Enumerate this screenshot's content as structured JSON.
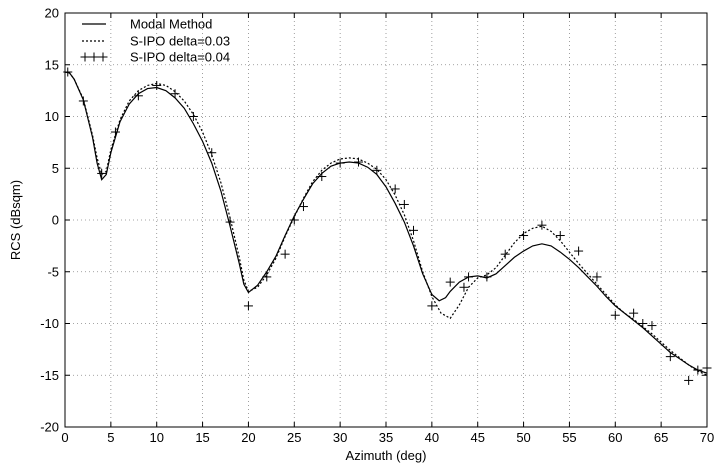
{
  "chart_data": {
    "type": "line",
    "xlabel": "Azimuth (deg)",
    "ylabel": "RCS (dBsqm)",
    "xlim": [
      0,
      70
    ],
    "ylim": [
      -20,
      20
    ],
    "x_ticks": [
      0,
      5,
      10,
      15,
      20,
      25,
      30,
      35,
      40,
      45,
      50,
      55,
      60,
      65,
      70
    ],
    "y_ticks": [
      -20,
      -15,
      -10,
      -5,
      0,
      5,
      10,
      15,
      20
    ],
    "grid": true,
    "legend_position": "top-left",
    "series": [
      {
        "name": "Modal Method",
        "style": "solid",
        "color": "#000000",
        "points": [
          [
            0,
            14.3
          ],
          [
            0.5,
            14.2
          ],
          [
            1,
            13.6
          ],
          [
            2,
            11.6
          ],
          [
            3,
            8
          ],
          [
            3.5,
            5.5
          ],
          [
            4,
            3.9
          ],
          [
            4.5,
            4.4
          ],
          [
            5,
            6.5
          ],
          [
            6,
            9.5
          ],
          [
            7,
            11.2
          ],
          [
            8,
            12.2
          ],
          [
            9,
            12.7
          ],
          [
            10,
            12.8
          ],
          [
            11,
            12.5
          ],
          [
            12,
            11.8
          ],
          [
            13,
            10.8
          ],
          [
            14,
            9.3
          ],
          [
            15,
            7.6
          ],
          [
            16,
            5.5
          ],
          [
            17,
            2.8
          ],
          [
            18,
            -0.6
          ],
          [
            19,
            -4.2
          ],
          [
            19.5,
            -6.2
          ],
          [
            20,
            -7
          ],
          [
            21,
            -6.3
          ],
          [
            22,
            -5
          ],
          [
            23,
            -3.5
          ],
          [
            24,
            -1.5
          ],
          [
            25,
            0.4
          ],
          [
            26,
            2
          ],
          [
            27,
            3.5
          ],
          [
            28,
            4.5
          ],
          [
            29,
            5.2
          ],
          [
            30,
            5.5
          ],
          [
            31,
            5.6
          ],
          [
            32,
            5.5
          ],
          [
            33,
            5.1
          ],
          [
            34,
            4.4
          ],
          [
            35,
            3.2
          ],
          [
            36,
            1.6
          ],
          [
            37,
            -0.2
          ],
          [
            38,
            -2.5
          ],
          [
            39,
            -5.2
          ],
          [
            40,
            -7.2
          ],
          [
            40.8,
            -7.8
          ],
          [
            41.5,
            -7.5
          ],
          [
            42,
            -6.9
          ],
          [
            43,
            -6
          ],
          [
            44,
            -5.5
          ],
          [
            45,
            -5.4
          ],
          [
            46,
            -5.6
          ],
          [
            47,
            -5.2
          ],
          [
            48,
            -4.4
          ],
          [
            49,
            -3.6
          ],
          [
            50,
            -3
          ],
          [
            51,
            -2.5
          ],
          [
            52,
            -2.3
          ],
          [
            53,
            -2.5
          ],
          [
            54,
            -3.1
          ],
          [
            55,
            -3.8
          ],
          [
            56,
            -4.6
          ],
          [
            57,
            -5.5
          ],
          [
            58,
            -6.4
          ],
          [
            59,
            -7.4
          ],
          [
            60,
            -8.3
          ],
          [
            61,
            -9
          ],
          [
            62,
            -9.7
          ],
          [
            63,
            -10.4
          ],
          [
            64,
            -11.2
          ],
          [
            65,
            -12
          ],
          [
            66,
            -12.8
          ],
          [
            67,
            -13.4
          ],
          [
            68,
            -14
          ],
          [
            69,
            -14.5
          ],
          [
            70,
            -14.8
          ]
        ]
      },
      {
        "name": "S-IPO delta=0.03",
        "style": "dotted",
        "color": "#000000",
        "points": [
          [
            0,
            14.3
          ],
          [
            0.5,
            14.2
          ],
          [
            1,
            13.6
          ],
          [
            2,
            11.7
          ],
          [
            3,
            8.2
          ],
          [
            3.5,
            6
          ],
          [
            4,
            4.4
          ],
          [
            4.5,
            4.7
          ],
          [
            5,
            6.8
          ],
          [
            6,
            9.7
          ],
          [
            7,
            11.5
          ],
          [
            8,
            12.5
          ],
          [
            9,
            13
          ],
          [
            10,
            13.2
          ],
          [
            11,
            13
          ],
          [
            12,
            12.4
          ],
          [
            13,
            11.5
          ],
          [
            14,
            10.2
          ],
          [
            15,
            8.5
          ],
          [
            16,
            6.3
          ],
          [
            17,
            3.6
          ],
          [
            18,
            0.2
          ],
          [
            19,
            -3.6
          ],
          [
            19.5,
            -5.8
          ],
          [
            20,
            -6.9
          ],
          [
            21,
            -6.5
          ],
          [
            22,
            -5.3
          ],
          [
            23,
            -3.7
          ],
          [
            24,
            -1.6
          ],
          [
            25,
            0.3
          ],
          [
            26,
            2.1
          ],
          [
            27,
            3.7
          ],
          [
            28,
            4.8
          ],
          [
            29,
            5.5
          ],
          [
            30,
            5.9
          ],
          [
            31,
            6
          ],
          [
            32,
            5.9
          ],
          [
            33,
            5.5
          ],
          [
            34,
            4.9
          ],
          [
            35,
            3.9
          ],
          [
            36,
            2.4
          ],
          [
            37,
            0.5
          ],
          [
            38,
            -2
          ],
          [
            39,
            -5
          ],
          [
            40,
            -7.4
          ],
          [
            41,
            -9
          ],
          [
            42,
            -9.5
          ],
          [
            43,
            -8.2
          ],
          [
            44,
            -6.5
          ],
          [
            45,
            -5.6
          ],
          [
            46,
            -5.3
          ],
          [
            47,
            -4.6
          ],
          [
            48,
            -3.4
          ],
          [
            49,
            -2.2
          ],
          [
            50,
            -1.3
          ],
          [
            51,
            -0.8
          ],
          [
            52,
            -0.6
          ],
          [
            53,
            -1.1
          ],
          [
            54,
            -2
          ],
          [
            55,
            -3.1
          ],
          [
            56,
            -4.2
          ],
          [
            57,
            -5.2
          ],
          [
            58,
            -6.2
          ],
          [
            59,
            -7.2
          ],
          [
            60,
            -8.2
          ],
          [
            61,
            -9
          ],
          [
            62,
            -9.6
          ],
          [
            63,
            -10.3
          ],
          [
            64,
            -11
          ],
          [
            65,
            -11.8
          ],
          [
            66,
            -12.6
          ],
          [
            67,
            -13.3
          ],
          [
            68,
            -14
          ],
          [
            69,
            -14.6
          ],
          [
            70,
            -15
          ]
        ]
      },
      {
        "name": "S-IPO delta=0.04",
        "style": "plus-markers",
        "color": "#000000",
        "points": [
          [
            0.3,
            14.3
          ],
          [
            2,
            11.5
          ],
          [
            4,
            4.5
          ],
          [
            5.5,
            8.5
          ],
          [
            8,
            12
          ],
          [
            10,
            13
          ],
          [
            12,
            12.2
          ],
          [
            14,
            10
          ],
          [
            16,
            6.5
          ],
          [
            18,
            -0.2
          ],
          [
            20,
            -8.3
          ],
          [
            22,
            -5.5
          ],
          [
            24,
            -3.3
          ],
          [
            25,
            0
          ],
          [
            26,
            1.3
          ],
          [
            28,
            4.2
          ],
          [
            30,
            5.5
          ],
          [
            32,
            5.6
          ],
          [
            34,
            4.8
          ],
          [
            36,
            3
          ],
          [
            37,
            1.5
          ],
          [
            38,
            -1
          ],
          [
            40,
            -8.3
          ],
          [
            42,
            -6
          ],
          [
            43.5,
            -6.5
          ],
          [
            44,
            -5.5
          ],
          [
            46,
            -5.5
          ],
          [
            48,
            -3.3
          ],
          [
            50,
            -1.5
          ],
          [
            52,
            -0.5
          ],
          [
            54,
            -1.5
          ],
          [
            56,
            -3
          ],
          [
            58,
            -5.5
          ],
          [
            60,
            -9.2
          ],
          [
            62,
            -9
          ],
          [
            63,
            -10
          ],
          [
            64,
            -10.2
          ],
          [
            66,
            -13.2
          ],
          [
            68,
            -15.5
          ],
          [
            69,
            -14.5
          ],
          [
            70,
            -14.3
          ]
        ]
      }
    ]
  }
}
